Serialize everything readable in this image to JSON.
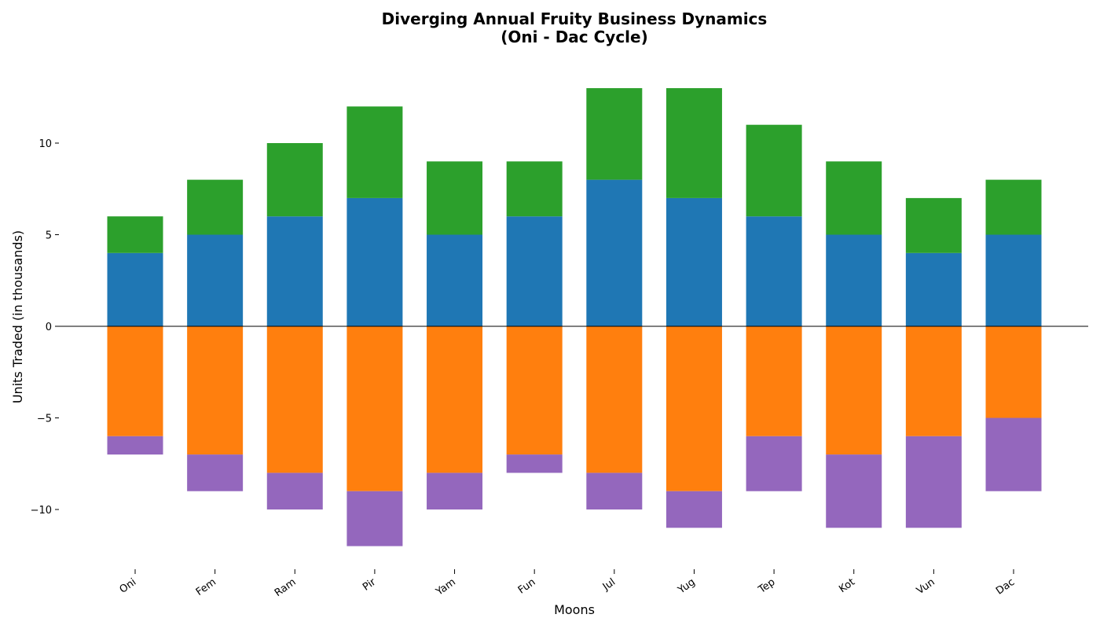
{
  "chart_data": {
    "type": "bar",
    "stacked": true,
    "diverging": true,
    "title": "Diverging Annual Fruity Business Dynamics",
    "subtitle": "(Oni - Dac Cycle)",
    "xlabel": "Moons",
    "ylabel": "Units Traded (in thousands)",
    "categories": [
      "Oni",
      "Fem",
      "Ram",
      "Pir",
      "Yam",
      "Fun",
      "Jul",
      "Yug",
      "Tep",
      "Kot",
      "Vun",
      "Dac"
    ],
    "ylim": [
      -13,
      14
    ],
    "yticks": [
      -10,
      -5,
      0,
      5,
      10
    ],
    "ytick_labels": [
      "−10",
      "−5",
      "0",
      "5",
      "10"
    ],
    "grid": false,
    "series": [
      {
        "values": [
          4,
          5,
          6,
          7,
          5,
          6,
          8,
          7,
          6,
          5,
          4,
          5
        ],
        "color": "#1f77b4"
      },
      {
        "values": [
          2,
          3,
          4,
          5,
          4,
          3,
          5,
          6,
          5,
          4,
          3,
          3
        ],
        "color": "#2ca02c"
      },
      {
        "values": [
          -6,
          -7,
          -8,
          -9,
          -8,
          -7,
          -8,
          -9,
          -6,
          -7,
          -6,
          -5
        ],
        "color": "#ff7f0e"
      },
      {
        "values": [
          -1,
          -2,
          -2,
          -3,
          -2,
          -1,
          -2,
          -2,
          -3,
          -4,
          -5,
          -4
        ],
        "color": "#9467bd"
      }
    ]
  }
}
